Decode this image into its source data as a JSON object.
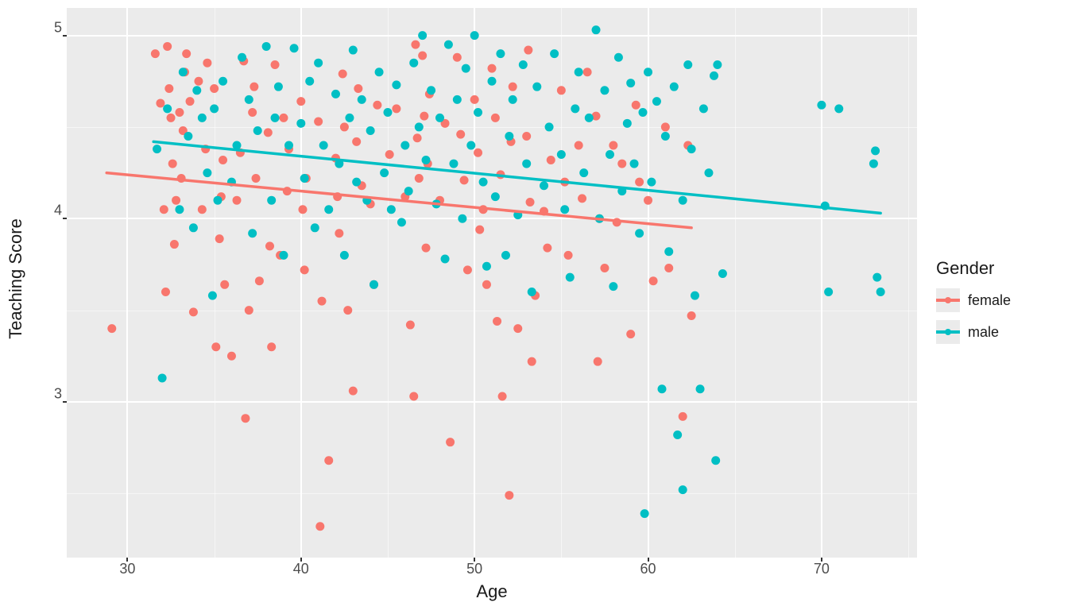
{
  "chart": {
    "type": "scatter",
    "xlabel": "Age",
    "ylabel": "Teaching Score",
    "label_fontsize": 22,
    "tick_fontsize": 18,
    "background_color": "#ffffff",
    "panel_color": "#ebebeb",
    "grid_color_major": "#ffffff",
    "grid_color_minor": "#ffffff",
    "tick_color": "#333333",
    "text_color": "#1a1a1a",
    "tick_text_color": "#4d4d4d",
    "xlim": [
      26.5,
      75.5
    ],
    "ylim": [
      2.15,
      5.15
    ],
    "xticks": [
      30,
      40,
      50,
      60,
      70
    ],
    "yticks": [
      3,
      4,
      5
    ],
    "xticks_minor": [
      35,
      45,
      55,
      65,
      75
    ],
    "yticks_minor": [
      2.5,
      3.5,
      4.5
    ],
    "point_radius": 5.5,
    "line_width": 3.5,
    "legend": {
      "title": "Gender",
      "items": [
        {
          "label": "female",
          "color": "#f8766d"
        },
        {
          "label": "male",
          "color": "#00bfc4"
        }
      ]
    },
    "series": {
      "female": {
        "color": "#f8766d",
        "regression": {
          "x1": 28.8,
          "y1": 4.25,
          "x2": 62.5,
          "y2": 3.95
        },
        "points": [
          [
            29.1,
            3.4
          ],
          [
            31.6,
            4.9
          ],
          [
            31.9,
            4.63
          ],
          [
            32.1,
            4.05
          ],
          [
            32.2,
            3.6
          ],
          [
            32.3,
            4.94
          ],
          [
            32.4,
            4.71
          ],
          [
            32.5,
            4.55
          ],
          [
            32.6,
            4.3
          ],
          [
            32.7,
            3.86
          ],
          [
            32.8,
            4.1
          ],
          [
            33.0,
            4.58
          ],
          [
            33.1,
            4.22
          ],
          [
            33.2,
            4.48
          ],
          [
            33.3,
            4.8
          ],
          [
            33.4,
            4.9
          ],
          [
            33.6,
            4.64
          ],
          [
            33.8,
            3.49
          ],
          [
            34.1,
            4.75
          ],
          [
            34.3,
            4.05
          ],
          [
            34.5,
            4.38
          ],
          [
            34.6,
            4.85
          ],
          [
            35.0,
            4.71
          ],
          [
            35.1,
            3.3
          ],
          [
            35.3,
            3.89
          ],
          [
            35.4,
            4.12
          ],
          [
            35.5,
            4.32
          ],
          [
            35.6,
            3.64
          ],
          [
            36.0,
            3.25
          ],
          [
            36.3,
            4.1
          ],
          [
            36.5,
            4.36
          ],
          [
            36.7,
            4.86
          ],
          [
            36.8,
            2.91
          ],
          [
            37.0,
            3.5
          ],
          [
            37.2,
            4.58
          ],
          [
            37.3,
            4.72
          ],
          [
            37.4,
            4.22
          ],
          [
            37.6,
            3.66
          ],
          [
            38.1,
            4.47
          ],
          [
            38.2,
            3.85
          ],
          [
            38.3,
            3.3
          ],
          [
            38.5,
            4.84
          ],
          [
            38.8,
            3.8
          ],
          [
            39.0,
            4.55
          ],
          [
            39.2,
            4.15
          ],
          [
            39.3,
            4.38
          ],
          [
            40.0,
            4.64
          ],
          [
            40.1,
            4.05
          ],
          [
            40.2,
            3.72
          ],
          [
            40.3,
            4.22
          ],
          [
            41.0,
            4.53
          ],
          [
            41.1,
            2.32
          ],
          [
            41.2,
            3.55
          ],
          [
            41.6,
            2.68
          ],
          [
            42.0,
            4.33
          ],
          [
            42.1,
            4.12
          ],
          [
            42.2,
            3.92
          ],
          [
            42.4,
            4.79
          ],
          [
            42.5,
            4.5
          ],
          [
            42.7,
            3.5
          ],
          [
            43.0,
            3.06
          ],
          [
            43.2,
            4.42
          ],
          [
            43.3,
            4.71
          ],
          [
            43.5,
            4.18
          ],
          [
            44.0,
            4.08
          ],
          [
            44.2,
            3.64
          ],
          [
            44.4,
            4.62
          ],
          [
            45.1,
            4.35
          ],
          [
            45.5,
            4.6
          ],
          [
            46.0,
            4.12
          ],
          [
            46.3,
            3.42
          ],
          [
            46.5,
            3.03
          ],
          [
            46.6,
            4.95
          ],
          [
            46.7,
            4.44
          ],
          [
            46.8,
            4.22
          ],
          [
            47.0,
            4.89
          ],
          [
            47.1,
            4.56
          ],
          [
            47.2,
            3.84
          ],
          [
            47.3,
            4.3
          ],
          [
            47.4,
            4.68
          ],
          [
            48.0,
            4.1
          ],
          [
            48.3,
            4.52
          ],
          [
            48.6,
            2.78
          ],
          [
            49.0,
            4.88
          ],
          [
            49.2,
            4.46
          ],
          [
            49.4,
            4.21
          ],
          [
            49.6,
            3.72
          ],
          [
            50.0,
            4.65
          ],
          [
            50.2,
            4.36
          ],
          [
            50.3,
            3.94
          ],
          [
            50.5,
            4.05
          ],
          [
            50.7,
            3.64
          ],
          [
            51.0,
            4.82
          ],
          [
            51.2,
            4.55
          ],
          [
            51.3,
            3.44
          ],
          [
            51.5,
            4.24
          ],
          [
            51.6,
            3.03
          ],
          [
            52.0,
            2.49
          ],
          [
            52.1,
            4.42
          ],
          [
            52.2,
            4.72
          ],
          [
            52.5,
            3.4
          ],
          [
            53.0,
            4.45
          ],
          [
            53.1,
            4.92
          ],
          [
            53.2,
            4.09
          ],
          [
            53.3,
            3.22
          ],
          [
            53.5,
            3.58
          ],
          [
            54.0,
            4.04
          ],
          [
            54.2,
            3.84
          ],
          [
            54.4,
            4.32
          ],
          [
            55.0,
            4.7
          ],
          [
            55.2,
            4.2
          ],
          [
            55.4,
            3.8
          ],
          [
            56.0,
            4.4
          ],
          [
            56.2,
            4.11
          ],
          [
            56.5,
            4.8
          ],
          [
            57.0,
            4.56
          ],
          [
            57.1,
            3.22
          ],
          [
            57.2,
            4.0
          ],
          [
            57.5,
            3.73
          ],
          [
            58.0,
            4.4
          ],
          [
            58.2,
            3.98
          ],
          [
            58.5,
            4.3
          ],
          [
            59.0,
            3.37
          ],
          [
            59.3,
            4.62
          ],
          [
            59.5,
            4.2
          ],
          [
            60.0,
            4.1
          ],
          [
            60.3,
            3.66
          ],
          [
            61.0,
            4.5
          ],
          [
            61.2,
            3.73
          ],
          [
            62.0,
            2.92
          ],
          [
            62.3,
            4.4
          ],
          [
            62.5,
            3.47
          ]
        ]
      },
      "male": {
        "color": "#00bfc4",
        "regression": {
          "x1": 31.5,
          "y1": 4.42,
          "x2": 73.4,
          "y2": 4.03
        },
        "points": [
          [
            31.7,
            4.38
          ],
          [
            32.0,
            3.13
          ],
          [
            32.3,
            4.6
          ],
          [
            33.0,
            4.05
          ],
          [
            33.2,
            4.8
          ],
          [
            33.5,
            4.45
          ],
          [
            33.8,
            3.95
          ],
          [
            34.0,
            4.7
          ],
          [
            34.3,
            4.55
          ],
          [
            34.6,
            4.25
          ],
          [
            34.9,
            3.58
          ],
          [
            35.0,
            4.6
          ],
          [
            35.2,
            4.1
          ],
          [
            35.5,
            4.75
          ],
          [
            36.0,
            4.2
          ],
          [
            36.3,
            4.4
          ],
          [
            36.6,
            4.88
          ],
          [
            37.0,
            4.65
          ],
          [
            37.2,
            3.92
          ],
          [
            37.5,
            4.48
          ],
          [
            38.0,
            4.94
          ],
          [
            38.3,
            4.1
          ],
          [
            38.5,
            4.55
          ],
          [
            38.7,
            4.72
          ],
          [
            39.0,
            3.8
          ],
          [
            39.3,
            4.4
          ],
          [
            39.6,
            4.93
          ],
          [
            40.0,
            4.52
          ],
          [
            40.2,
            4.22
          ],
          [
            40.5,
            4.75
          ],
          [
            40.8,
            3.95
          ],
          [
            41.0,
            4.85
          ],
          [
            41.3,
            4.4
          ],
          [
            41.6,
            4.05
          ],
          [
            42.0,
            4.68
          ],
          [
            42.2,
            4.3
          ],
          [
            42.5,
            3.8
          ],
          [
            42.8,
            4.55
          ],
          [
            43.0,
            4.92
          ],
          [
            43.2,
            4.2
          ],
          [
            43.5,
            4.65
          ],
          [
            43.8,
            4.1
          ],
          [
            44.0,
            4.48
          ],
          [
            44.2,
            3.64
          ],
          [
            44.5,
            4.8
          ],
          [
            44.8,
            4.25
          ],
          [
            45.0,
            4.58
          ],
          [
            45.2,
            4.05
          ],
          [
            45.5,
            4.73
          ],
          [
            45.8,
            3.98
          ],
          [
            46.0,
            4.4
          ],
          [
            46.2,
            4.15
          ],
          [
            46.5,
            4.85
          ],
          [
            46.8,
            4.5
          ],
          [
            47.0,
            5.0
          ],
          [
            47.2,
            4.32
          ],
          [
            47.5,
            4.7
          ],
          [
            47.8,
            4.08
          ],
          [
            48.0,
            4.55
          ],
          [
            48.3,
            3.78
          ],
          [
            48.5,
            4.95
          ],
          [
            48.8,
            4.3
          ],
          [
            49.0,
            4.65
          ],
          [
            49.3,
            4.0
          ],
          [
            49.5,
            4.82
          ],
          [
            49.8,
            4.4
          ],
          [
            50.0,
            5.0
          ],
          [
            50.2,
            4.58
          ],
          [
            50.5,
            4.2
          ],
          [
            50.7,
            3.74
          ],
          [
            51.0,
            4.75
          ],
          [
            51.2,
            4.12
          ],
          [
            51.5,
            4.9
          ],
          [
            51.8,
            3.8
          ],
          [
            52.0,
            4.45
          ],
          [
            52.2,
            4.65
          ],
          [
            52.5,
            4.02
          ],
          [
            52.8,
            4.84
          ],
          [
            53.0,
            4.3
          ],
          [
            53.3,
            3.6
          ],
          [
            53.6,
            4.72
          ],
          [
            54.0,
            4.18
          ],
          [
            54.3,
            4.5
          ],
          [
            54.6,
            4.9
          ],
          [
            55.0,
            4.35
          ],
          [
            55.2,
            4.05
          ],
          [
            55.5,
            3.68
          ],
          [
            55.8,
            4.6
          ],
          [
            56.0,
            4.8
          ],
          [
            56.3,
            4.25
          ],
          [
            56.6,
            4.55
          ],
          [
            57.0,
            5.03
          ],
          [
            57.2,
            4.0
          ],
          [
            57.5,
            4.7
          ],
          [
            57.8,
            4.35
          ],
          [
            58.0,
            3.63
          ],
          [
            58.3,
            4.88
          ],
          [
            58.5,
            4.15
          ],
          [
            58.8,
            4.52
          ],
          [
            59.0,
            4.74
          ],
          [
            59.2,
            4.3
          ],
          [
            59.5,
            3.92
          ],
          [
            59.7,
            4.58
          ],
          [
            59.8,
            2.39
          ],
          [
            60.0,
            4.8
          ],
          [
            60.2,
            4.2
          ],
          [
            60.5,
            4.64
          ],
          [
            60.8,
            3.07
          ],
          [
            61.0,
            4.45
          ],
          [
            61.2,
            3.82
          ],
          [
            61.5,
            4.72
          ],
          [
            61.7,
            2.82
          ],
          [
            62.0,
            2.52
          ],
          [
            62.0,
            4.1
          ],
          [
            62.3,
            4.84
          ],
          [
            62.5,
            4.38
          ],
          [
            62.7,
            3.58
          ],
          [
            63.0,
            3.07
          ],
          [
            63.2,
            4.6
          ],
          [
            63.5,
            4.25
          ],
          [
            63.8,
            4.78
          ],
          [
            63.9,
            2.68
          ],
          [
            64.0,
            4.84
          ],
          [
            64.3,
            3.7
          ],
          [
            70.0,
            4.62
          ],
          [
            70.2,
            4.07
          ],
          [
            70.4,
            3.6
          ],
          [
            71.0,
            4.6
          ],
          [
            73.0,
            4.3
          ],
          [
            73.2,
            3.68
          ],
          [
            73.4,
            3.6
          ],
          [
            73.1,
            4.37
          ]
        ]
      }
    }
  }
}
